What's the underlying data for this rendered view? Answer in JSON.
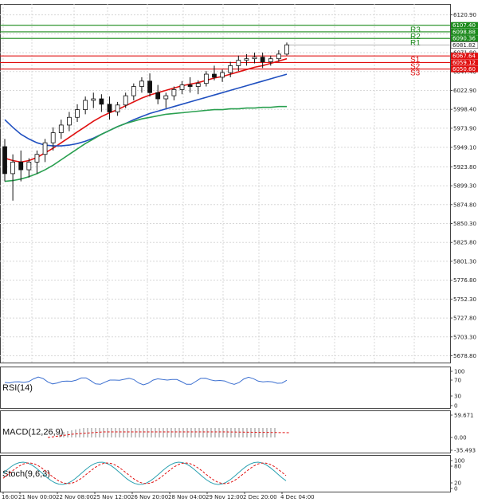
{
  "chart_data": {
    "type": "candlestick",
    "instrument_note": "",
    "price_axis": {
      "min": 5670,
      "max": 6135,
      "ticks": [
        6120.9,
        6096.4,
        6071.9,
        6047.4,
        6022.9,
        5998.4,
        5973.9,
        5949.1,
        5923.8,
        5899.3,
        5874.8,
        5850.3,
        5825.8,
        5801.3,
        5776.8,
        5752.3,
        5727.8,
        5703.3,
        5678.8
      ]
    },
    "time_axis_labels": [
      "16:00",
      "21 Nov 00:00",
      "22 Nov 08:00",
      "25 Nov 12:00",
      "26 Nov 20:00",
      "28 Nov 04:00",
      "29 Nov 12:00",
      "2 Dec 20:00",
      "4 Dec 04:00"
    ],
    "levels": [
      {
        "name": "R3",
        "value": 6107.4,
        "color": "#1a8a1a"
      },
      {
        "name": "R2",
        "value": 6098.88,
        "color": "#1a8a1a"
      },
      {
        "name": "R1",
        "value": 6090.36,
        "color": "#1a8a1a"
      },
      {
        "name": "S1",
        "value": 6067.64,
        "color": "#e01010"
      },
      {
        "name": "S2",
        "value": 6059.12,
        "color": "#e01010"
      },
      {
        "name": "S3",
        "value": 6050.6,
        "color": "#e01010"
      }
    ],
    "level_labels": [
      "6107.40",
      "6098.88",
      "6090.36",
      "6067.64",
      "6059.12",
      "6050.60"
    ],
    "current_price": 6081.82,
    "current_price_label": "6081.82",
    "candles": [
      [
        5950,
        5960,
        5905,
        5915
      ],
      [
        5915,
        5940,
        5880,
        5930
      ],
      [
        5930,
        5945,
        5905,
        5920
      ],
      [
        5920,
        5935,
        5910,
        5930
      ],
      [
        5930,
        5945,
        5915,
        5940
      ],
      [
        5940,
        5960,
        5930,
        5955
      ],
      [
        5955,
        5975,
        5945,
        5968
      ],
      [
        5968,
        5985,
        5960,
        5978
      ],
      [
        5978,
        5995,
        5970,
        5988
      ],
      [
        5988,
        6005,
        5982,
        5998
      ],
      [
        5998,
        6015,
        5992,
        6010
      ],
      [
        6010,
        6020,
        6000,
        6012
      ],
      [
        6012,
        6018,
        5995,
        6005
      ],
      [
        6005,
        6015,
        5985,
        5995
      ],
      [
        5995,
        6008,
        5990,
        6004
      ],
      [
        6004,
        6020,
        6000,
        6016
      ],
      [
        6016,
        6032,
        6010,
        6028
      ],
      [
        6028,
        6040,
        6020,
        6035
      ],
      [
        6035,
        6045,
        6015,
        6020
      ],
      [
        6020,
        6030,
        6005,
        6012
      ],
      [
        6012,
        6020,
        6000,
        6016
      ],
      [
        6016,
        6028,
        6010,
        6024
      ],
      [
        6024,
        6035,
        6018,
        6030
      ],
      [
        6030,
        6040,
        6020,
        6028
      ],
      [
        6028,
        6036,
        6018,
        6032
      ],
      [
        6032,
        6048,
        6028,
        6044
      ],
      [
        6044,
        6055,
        6036,
        6040
      ],
      [
        6040,
        6050,
        6034,
        6046
      ],
      [
        6046,
        6060,
        6040,
        6055
      ],
      [
        6055,
        6068,
        6048,
        6062
      ],
      [
        6062,
        6070,
        6055,
        6064
      ],
      [
        6064,
        6072,
        6058,
        6066
      ],
      [
        6066,
        6072,
        6052,
        6060
      ],
      [
        6060,
        6068,
        6055,
        6064
      ],
      [
        6064,
        6075,
        6060,
        6070
      ],
      [
        6070,
        6085,
        6068,
        6082
      ]
    ],
    "moving_averages": [
      {
        "color": "#e01010",
        "values": [
          5935,
          5932,
          5930,
          5932,
          5936,
          5942,
          5948,
          5955,
          5962,
          5969,
          5976,
          5983,
          5989,
          5994,
          5998,
          6003,
          6008,
          6013,
          6017,
          6020,
          6023,
          6026,
          6029,
          6031,
          6033,
          6036,
          6039,
          6041,
          6044,
          6047,
          6050,
          6053,
          6055,
          6058,
          6061,
          6064
        ]
      },
      {
        "color": "#2050c0",
        "values": [
          5985,
          5975,
          5966,
          5960,
          5955,
          5952,
          5951,
          5951,
          5952,
          5954,
          5957,
          5961,
          5966,
          5971,
          5976,
          5980,
          5985,
          5989,
          5993,
          5996,
          5999,
          6002,
          6005,
          6008,
          6011,
          6014,
          6017,
          6020,
          6023,
          6026,
          6029,
          6032,
          6035,
          6038,
          6041,
          6044
        ]
      },
      {
        "color": "#2aa050",
        "values": [
          5905,
          5906,
          5908,
          5911,
          5915,
          5920,
          5926,
          5933,
          5940,
          5947,
          5954,
          5960,
          5966,
          5971,
          5976,
          5980,
          5983,
          5986,
          5988,
          5990,
          5992,
          5993,
          5994,
          5995,
          5996,
          5997,
          5998,
          5998,
          5999,
          5999,
          6000,
          6000,
          6001,
          6001,
          6002,
          6002
        ]
      }
    ],
    "indicators": [
      {
        "name": "RSI(14)",
        "axis_ticks": [
          "100",
          "70",
          "30",
          "0"
        ],
        "range": [
          0,
          100
        ]
      },
      {
        "name": "MACD(12,26,9)",
        "axis_ticks": [
          "59.671",
          "0.00",
          "-35.493"
        ],
        "range": [
          -35.493,
          59.671
        ]
      },
      {
        "name": "Stoch(9,6,3)",
        "axis_ticks": [
          "100",
          "80",
          "20",
          "0"
        ],
        "range": [
          0,
          100
        ]
      }
    ],
    "grid": true
  }
}
